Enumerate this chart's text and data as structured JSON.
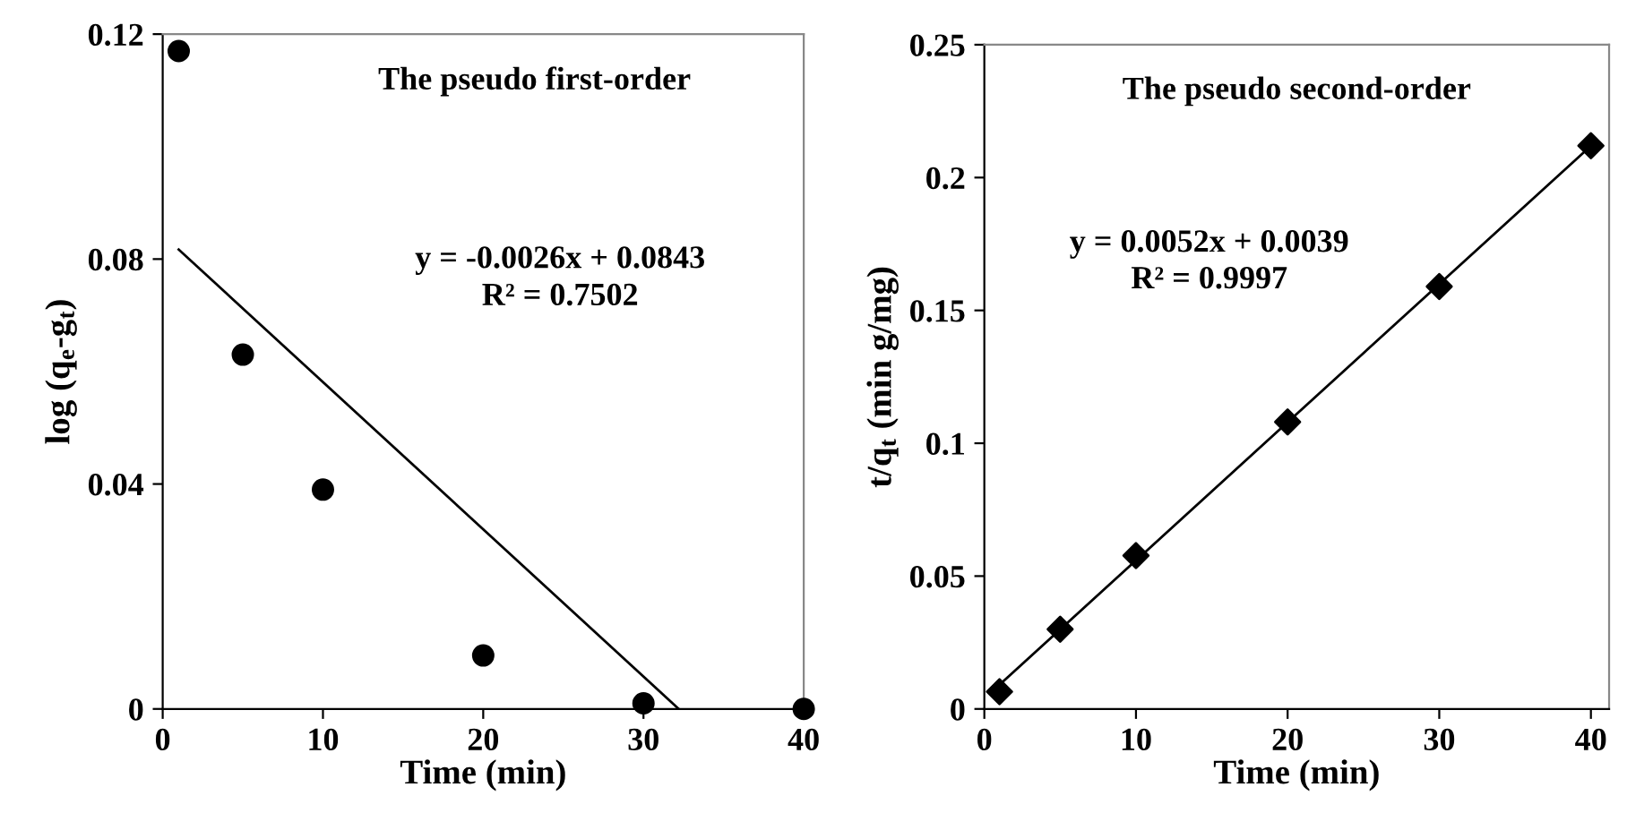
{
  "chart_data": [
    {
      "type": "scatter",
      "title": "The pseudo first-order",
      "xlabel": "Time (min)",
      "ylabel": "log (q$_{e}$-g$_{t}$)",
      "x": [
        1,
        5,
        10,
        20,
        30,
        40
      ],
      "series": [
        {
          "color": "#000000",
          "marker": "circle",
          "values": [
            0.117,
            0.063,
            0.039,
            0.0095,
            0.001,
            0
          ]
        },
        {
          "type": "line",
          "color": "#000000",
          "marker": "none",
          "x": [
            1,
            32.2
          ],
          "values": [
            0.0817,
            0
          ]
        }
      ],
      "annotations": [
        "y = -0.0026x + 0.0843",
        "R² = 0.7502"
      ],
      "xlim": [
        0,
        40
      ],
      "ylim": [
        0,
        0.12
      ],
      "xticks": [
        0,
        10,
        20,
        30,
        40
      ],
      "yticks": [
        0,
        0.04,
        0.08,
        0.12
      ],
      "grid": false,
      "legend": false
    },
    {
      "type": "scatter",
      "title": "The pseudo second-order",
      "xlabel": "Time (min)",
      "ylabel": "t/q$_{t}$ (min g/mg)",
      "x": [
        1,
        5,
        10,
        20,
        30,
        40
      ],
      "series": [
        {
          "color": "#000000",
          "marker": "diamond",
          "values": [
            0.0065,
            0.03,
            0.0577,
            0.108,
            0.159,
            0.212
          ]
        },
        {
          "type": "line",
          "color": "#000000",
          "marker": "none",
          "x": [
            1,
            40
          ],
          "values": [
            0.0091,
            0.2119
          ]
        }
      ],
      "annotations": [
        "y = 0.0052x + 0.0039",
        "R² = 0.9997"
      ],
      "xlim": [
        0,
        41.2
      ],
      "ylim": [
        0,
        0.25
      ],
      "xticks": [
        0,
        10,
        20,
        30,
        40
      ],
      "yticks": [
        0,
        0.05,
        0.1,
        0.15,
        0.2,
        0.25
      ],
      "grid": false,
      "legend": false
    }
  ]
}
